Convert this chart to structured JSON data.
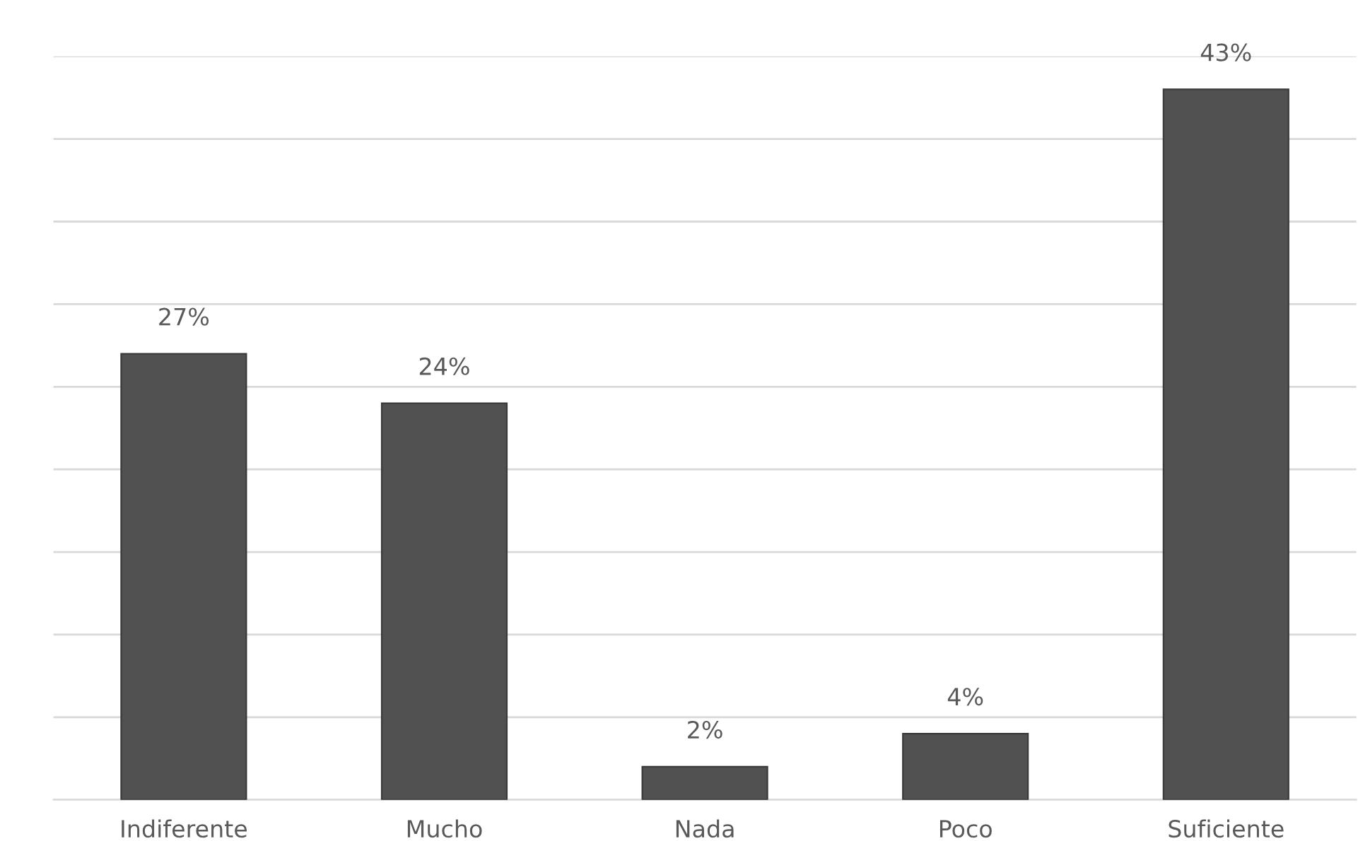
{
  "chart_data": {
    "type": "bar",
    "categories": [
      "Indiferente",
      "Mucho",
      "Nada",
      "Poco",
      "Suficiente"
    ],
    "values": [
      27,
      24,
      2,
      4,
      43
    ],
    "value_labels": [
      "27%",
      "24%",
      "2%",
      "4%",
      "43%"
    ],
    "color": "#515151",
    "ylim": [
      0,
      45
    ],
    "yticks": [
      {
        "value": 0,
        "label": null
      },
      {
        "value": 5,
        "label": null
      },
      {
        "value": 10,
        "label": null
      },
      {
        "value": 15,
        "label": null
      },
      {
        "value": 20,
        "label": null
      },
      {
        "value": 25,
        "label": null
      },
      {
        "value": 30,
        "label": null
      },
      {
        "value": 35,
        "label": null
      },
      {
        "value": 40,
        "label": null
      },
      {
        "value": 45,
        "label": null
      }
    ],
    "grid": "y",
    "tick_labels": "x"
  }
}
